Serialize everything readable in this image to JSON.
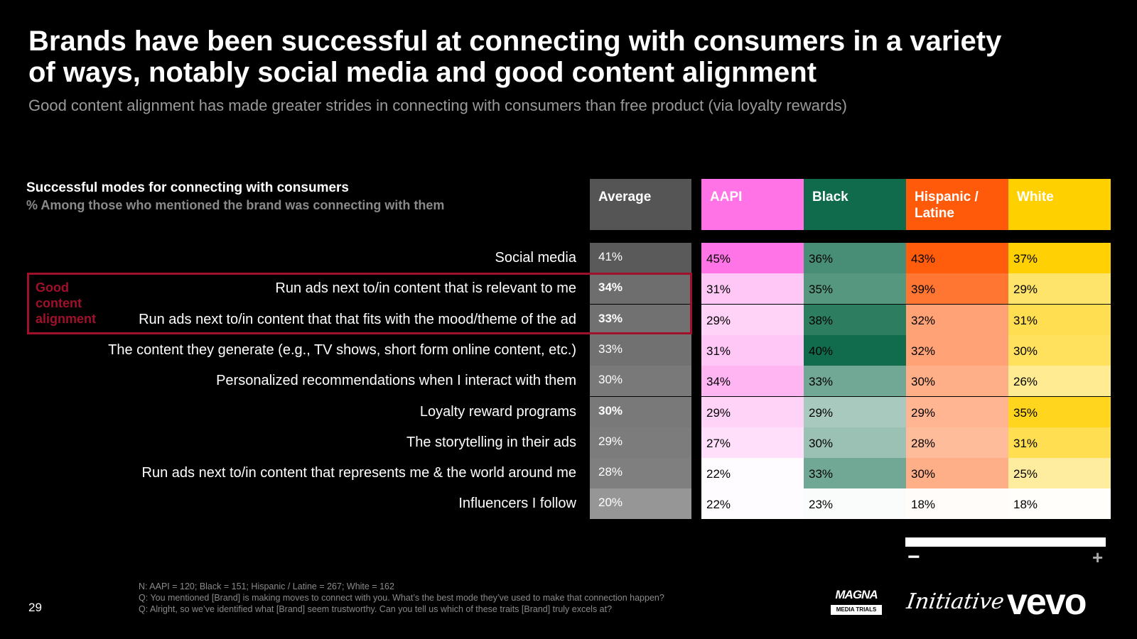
{
  "title": "Brands have been successful at connecting with consumers in a variety of ways, notably social media and good content alignment",
  "subtitle": "Good content alignment has made greater strides in connecting with consumers than free product (via loyalty rewards)",
  "chart_heading": "Successful modes for connecting with consumers",
  "chart_subheading": "% Among those who mentioned the brand was connecting with them",
  "highlight_label": "Good content alignment",
  "scale": {
    "minus": "−",
    "plus": "+"
  },
  "footnotes": [
    "N: AAPI = 120; Black = 151; Hispanic / Latine = 267; White = 162",
    "Q: You mentioned [Brand] is making moves to connect with you. What’s the best mode they’ve used to make that connection happen?",
    "Q: Alright, so we’ve identified what [Brand] seem trustworthy. Can you tell us which of these traits [Brand] truly excels at?"
  ],
  "page_number": "29",
  "logos": {
    "magna": "MAGNA",
    "magna_sub": "MEDIA TRIALS",
    "initiative": "Initiative",
    "vevo": "vevo"
  },
  "colors": {
    "average": "#808080",
    "AAPI": "#ff73e6",
    "Black": "#0f6b4b",
    "Hispanic / Latine": "#ff5a0a",
    "White": "#ffd000",
    "highlight": "#a0102a"
  },
  "chart_data": {
    "type": "table",
    "title": "Successful modes for connecting with consumers",
    "subtitle": "% Among those who mentioned the brand was connecting with them",
    "average_label": "Average",
    "columns": [
      "AAPI",
      "Black",
      "Hispanic / Latine",
      "White"
    ],
    "rows": [
      {
        "label": "Social media",
        "average": 41,
        "values": [
          45,
          36,
          43,
          37
        ]
      },
      {
        "label": "Run ads next to/in content that is relevant to me",
        "average": 34,
        "values": [
          31,
          35,
          39,
          29
        ],
        "bold_average": true
      },
      {
        "label": "Run ads next to/in content that that fits with the mood/theme of the ad",
        "average": 33,
        "values": [
          29,
          38,
          32,
          31
        ],
        "bold_average": true
      },
      {
        "label": "The content they generate (e.g., TV shows, short form online content, etc.)",
        "average": 33,
        "values": [
          31,
          40,
          32,
          30
        ]
      },
      {
        "label": "Personalized recommendations when I interact with them",
        "average": 30,
        "values": [
          34,
          33,
          30,
          26
        ]
      },
      {
        "label": "Loyalty reward programs",
        "average": 30,
        "values": [
          29,
          29,
          29,
          35
        ],
        "bold_average": true
      },
      {
        "label": "The storytelling in their ads",
        "average": 29,
        "values": [
          27,
          30,
          28,
          31
        ]
      },
      {
        "label": "Run ads next to/in content that represents me & the world around me",
        "average": 28,
        "values": [
          22,
          33,
          30,
          25
        ]
      },
      {
        "label": "Influencers I follow",
        "average": 20,
        "values": [
          22,
          23,
          18,
          18
        ]
      }
    ]
  }
}
